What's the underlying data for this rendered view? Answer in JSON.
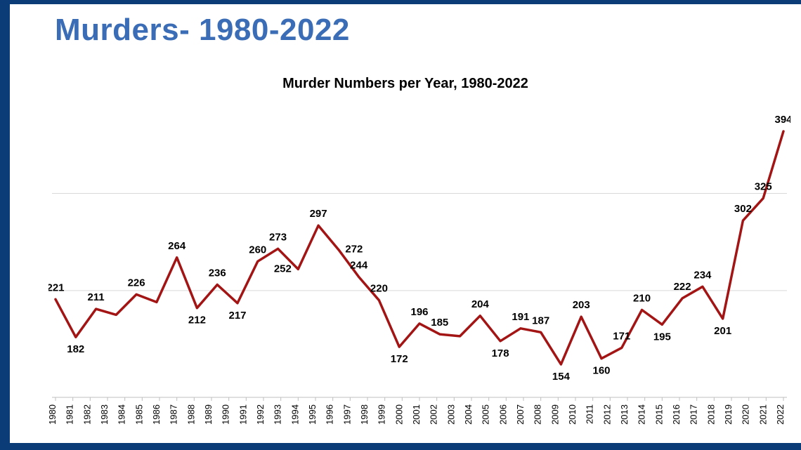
{
  "title": "Murders-  1980-2022",
  "subtitle": "Murder Numbers per Year, 1980-2022",
  "chart": {
    "type": "line",
    "line_color": "#a31515",
    "line_width": 3.5,
    "background_color": "#ffffff",
    "grid_color": "#d9d9d9",
    "title_color": "#3a6db5",
    "title_fontsize": 44,
    "subtitle_fontsize": 20,
    "label_fontsize": 15,
    "xlabel_fontsize": 13,
    "x_axis_rotation": -90,
    "ylim": [
      120,
      420
    ],
    "grid_y_values": [
      230,
      330
    ],
    "years": [
      1980,
      1981,
      1982,
      1983,
      1984,
      1985,
      1986,
      1987,
      1988,
      1989,
      1990,
      1991,
      1992,
      1993,
      1994,
      1995,
      1996,
      1997,
      1998,
      1999,
      2000,
      2001,
      2002,
      2003,
      2004,
      2005,
      2006,
      2007,
      2008,
      2009,
      2010,
      2011,
      2012,
      2013,
      2014,
      2015,
      2016,
      2017,
      2018,
      2019,
      2020,
      2021,
      2022
    ],
    "values": [
      221,
      182,
      211,
      205,
      226,
      218,
      264,
      212,
      236,
      217,
      260,
      273,
      252,
      297,
      272,
      244,
      220,
      172,
      196,
      185,
      183,
      204,
      178,
      191,
      187,
      154,
      203,
      160,
      171,
      210,
      195,
      222,
      234,
      201,
      302,
      325,
      394
    ],
    "points": [
      {
        "year": 1980,
        "value": 221,
        "label": "221",
        "label_pos": "above"
      },
      {
        "year": 1981,
        "value": 182,
        "label": "182",
        "label_pos": "below"
      },
      {
        "year": 1982,
        "value": 211,
        "label": "211",
        "label_pos": "above"
      },
      {
        "year": 1983,
        "value": 205,
        "label": "",
        "label_pos": "none"
      },
      {
        "year": 1984,
        "value": 226,
        "label": "226",
        "label_pos": "above"
      },
      {
        "year": 1985,
        "value": 218,
        "label": "",
        "label_pos": "none"
      },
      {
        "year": 1986,
        "value": 264,
        "label": "264",
        "label_pos": "above"
      },
      {
        "year": 1987,
        "value": 212,
        "label": "212",
        "label_pos": "below"
      },
      {
        "year": 1988,
        "value": 236,
        "label": "236",
        "label_pos": "above"
      },
      {
        "year": 1989,
        "value": 217,
        "label": "217",
        "label_pos": "below"
      },
      {
        "year": 1990,
        "value": 260,
        "label": "260",
        "label_pos": "above"
      },
      {
        "year": 1991,
        "value": 273,
        "label": "273",
        "label_pos": "above"
      },
      {
        "year": 1992,
        "value": 252,
        "label": "252",
        "label_pos": "left"
      },
      {
        "year": 1993,
        "value": 297,
        "label": "297",
        "label_pos": "above"
      },
      {
        "year": 1994,
        "value": 272,
        "label": "272",
        "label_pos": "right"
      },
      {
        "year": 1995,
        "value": 244,
        "label": "244",
        "label_pos": "above"
      },
      {
        "year": 1996,
        "value": 220,
        "label": "220",
        "label_pos": "above"
      },
      {
        "year": 1997,
        "value": 172,
        "label": "172",
        "label_pos": "below"
      },
      {
        "year": 1998,
        "value": 196,
        "label": "196",
        "label_pos": "above"
      },
      {
        "year": 1999,
        "value": 185,
        "label": "185",
        "label_pos": "above"
      },
      {
        "year": 2000,
        "value": 183,
        "label": "",
        "label_pos": "none"
      },
      {
        "year": 2001,
        "value": 204,
        "label": "204",
        "label_pos": "above"
      },
      {
        "year": 2002,
        "value": 178,
        "label": "178",
        "label_pos": "below"
      },
      {
        "year": 2003,
        "value": 191,
        "label": "191",
        "label_pos": "above"
      },
      {
        "year": 2004,
        "value": 187,
        "label": "187",
        "label_pos": "above"
      },
      {
        "year": 2005,
        "value": 154,
        "label": "154",
        "label_pos": "below"
      },
      {
        "year": 2006,
        "value": 203,
        "label": "203",
        "label_pos": "above"
      },
      {
        "year": 2007,
        "value": 160,
        "label": "160",
        "label_pos": "below"
      },
      {
        "year": 2008,
        "value": 171,
        "label": "171",
        "label_pos": "above"
      },
      {
        "year": 2009,
        "value": 210,
        "label": "210",
        "label_pos": "above"
      },
      {
        "year": 2010,
        "value": 195,
        "label": "195",
        "label_pos": "below"
      },
      {
        "year": 2011,
        "value": 222,
        "label": "222",
        "label_pos": "above"
      },
      {
        "year": 2012,
        "value": 234,
        "label": "234",
        "label_pos": "above"
      },
      {
        "year": 2013,
        "value": 201,
        "label": "201",
        "label_pos": "below"
      },
      {
        "year": 2014,
        "value": 302,
        "label": "302",
        "label_pos": "above"
      },
      {
        "year": 2015,
        "value": 325,
        "label": "325",
        "label_pos": "above"
      },
      {
        "year": 2016,
        "value": 394,
        "label": "394",
        "label_pos": "above"
      }
    ],
    "x_labels": [
      "1980",
      "1981",
      "1982",
      "1983",
      "1984",
      "1985",
      "1986",
      "1987",
      "1988",
      "1989",
      "1990",
      "1991",
      "1992",
      "1993",
      "1994",
      "1995",
      "1996",
      "1997",
      "1998",
      "1999",
      "2000",
      "2001",
      "2002",
      "2003",
      "2004",
      "2005",
      "2006",
      "2007",
      "2008",
      "2009",
      "2010",
      "2011",
      "2012",
      "2013",
      "2014",
      "2015",
      "2016",
      "2017",
      "2018",
      "2019",
      "2020",
      "2021",
      "2022"
    ]
  }
}
